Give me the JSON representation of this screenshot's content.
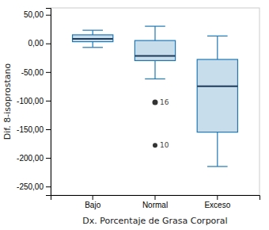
{
  "chart_data": {
    "type": "box",
    "xlabel": "Dx. Porcentaje de Grasa Corporal",
    "ylabel": "Dif. 8-isoprostano",
    "categories": [
      "Bajo",
      "Normal",
      "Exceso"
    ],
    "boxes": [
      {
        "q1": 3,
        "median": 8,
        "q3": 15,
        "whislo": -7,
        "whishi": 23,
        "fliers": [],
        "flier_labels": []
      },
      {
        "q1": -30,
        "median": -22,
        "q3": 5,
        "whislo": -62,
        "whishi": 30,
        "fliers": [
          -103,
          -178
        ],
        "flier_labels": [
          "16",
          "10"
        ]
      },
      {
        "q1": -155,
        "median": -75,
        "q3": -28,
        "whislo": -215,
        "whishi": 13,
        "fliers": [],
        "flier_labels": []
      }
    ],
    "ylim": [
      -265,
      62
    ],
    "yticks": [
      {
        "value": 50,
        "label": "50,00"
      },
      {
        "value": 0,
        "label": "0,00"
      },
      {
        "value": -50,
        "label": "-50,00"
      },
      {
        "value": -100,
        "label": "-100,00"
      },
      {
        "value": -150,
        "label": "-150,00"
      },
      {
        "value": -200,
        "label": "-200,00"
      },
      {
        "value": -250,
        "label": "-250,00"
      }
    ],
    "grid": false
  }
}
